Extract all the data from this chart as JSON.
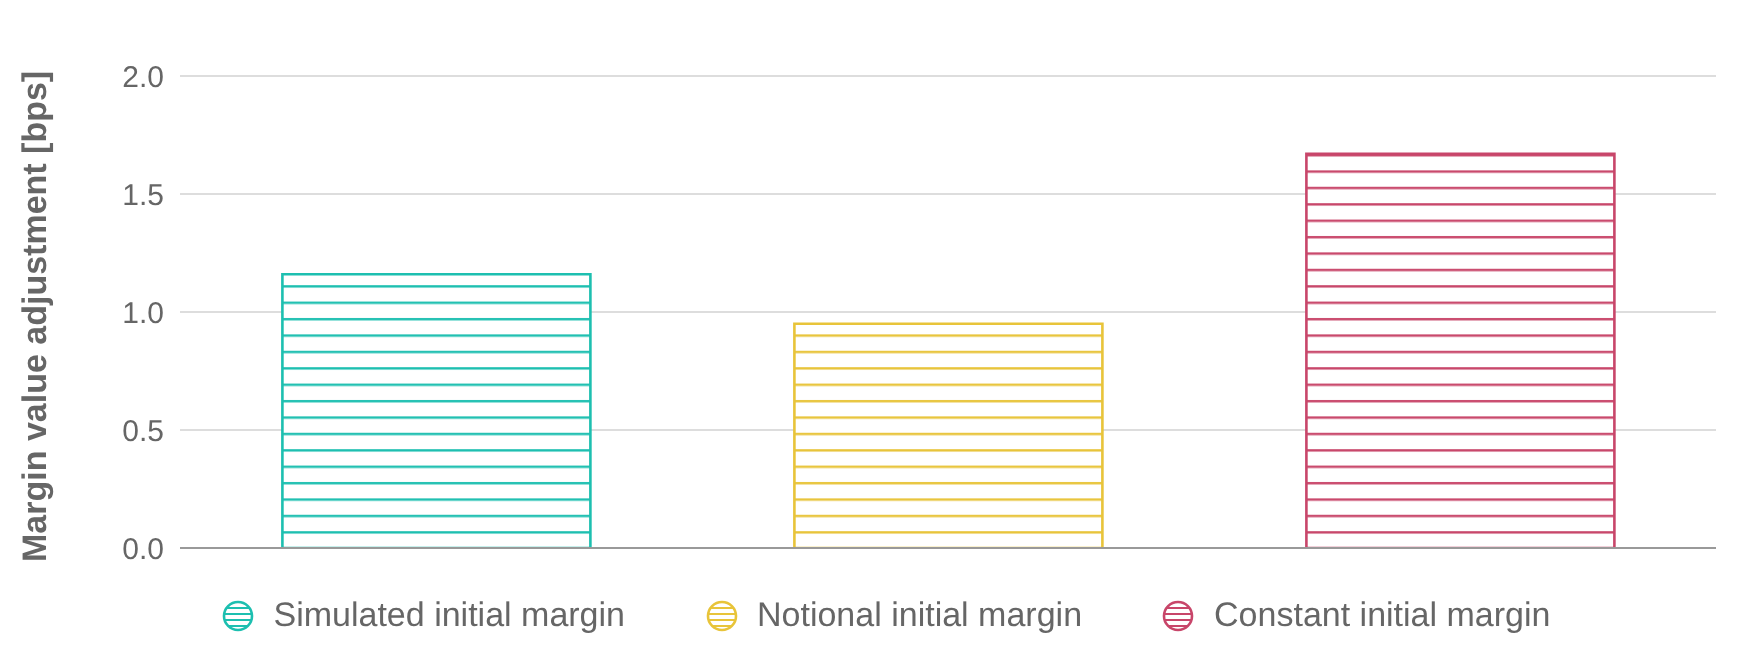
{
  "chart_data": {
    "type": "bar",
    "ylabel": "Margin value adjustment [bps]",
    "categories": [
      null,
      null,
      null
    ],
    "stacked": true,
    "series": [
      {
        "name": "Simulated initial margin",
        "color": "#1dbfb0",
        "values": [
          1.16,
          null,
          null
        ]
      },
      {
        "name": "Notional initial margin",
        "color": "#e8c43a",
        "values": [
          null,
          0.95,
          null
        ]
      },
      {
        "name": "Constant initial margin",
        "color": "#c8466a",
        "values": [
          null,
          null,
          1.67
        ]
      }
    ],
    "ylim": [
      0,
      2
    ],
    "yticks": [
      {
        "value": 0,
        "label": "0.0"
      },
      {
        "value": 0.5,
        "label": "0.5"
      },
      {
        "value": 1,
        "label": "1.0"
      },
      {
        "value": 1.5,
        "label": "1.5"
      },
      {
        "value": 2,
        "label": "2.0"
      }
    ],
    "grid": "y",
    "legend": "bottom"
  }
}
